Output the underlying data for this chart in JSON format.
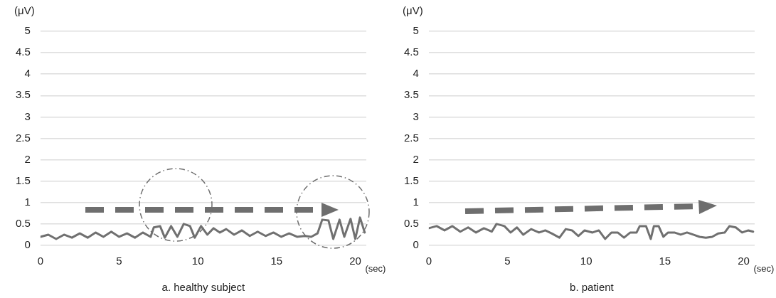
{
  "chart_data": [
    {
      "type": "line",
      "title": "a. healthy subject",
      "ylabel": "(μV)",
      "xlabel": "(sec)",
      "xlim": [
        0,
        20.7
      ],
      "xticks": [
        0,
        5,
        10,
        15,
        20
      ],
      "ylim": [
        0,
        5
      ],
      "yticks": [
        0,
        0.5,
        1,
        1.5,
        2,
        2.5,
        3,
        3.5,
        4,
        4.5,
        5
      ],
      "grid": "y",
      "legend": false,
      "marker": "none",
      "series": [
        {
          "color": "#707070",
          "x": [
            0,
            0.5,
            1,
            1.5,
            2,
            2.5,
            3,
            3.5,
            4,
            4.5,
            5,
            5.5,
            6,
            6.5,
            7,
            7.2,
            7.6,
            7.9,
            8.3,
            8.7,
            9.1,
            9.5,
            9.8,
            10.2,
            10.6,
            11,
            11.4,
            11.8,
            12.3,
            12.8,
            13.3,
            13.8,
            14.3,
            14.8,
            15.3,
            15.8,
            16.3,
            16.8,
            17.2,
            17.6,
            17.9,
            18.3,
            18.6,
            19,
            19.3,
            19.7,
            20,
            20.3,
            20.6
          ],
          "values": [
            0.2,
            0.25,
            0.15,
            0.25,
            0.18,
            0.28,
            0.18,
            0.3,
            0.2,
            0.32,
            0.2,
            0.28,
            0.18,
            0.3,
            0.2,
            0.42,
            0.45,
            0.18,
            0.45,
            0.2,
            0.5,
            0.45,
            0.18,
            0.45,
            0.25,
            0.4,
            0.3,
            0.38,
            0.25,
            0.35,
            0.22,
            0.32,
            0.22,
            0.3,
            0.2,
            0.28,
            0.2,
            0.22,
            0.2,
            0.28,
            0.6,
            0.58,
            0.15,
            0.6,
            0.2,
            0.62,
            0.15,
            0.65,
            0.3
          ]
        }
      ]
    },
    {
      "type": "line",
      "title": "b. patient",
      "ylabel": "(μV)",
      "xlabel": "(sec)",
      "xlim": [
        0,
        20.7
      ],
      "xticks": [
        0,
        5,
        10,
        15,
        20
      ],
      "ylim": [
        0,
        5
      ],
      "yticks": [
        0,
        0.5,
        1,
        1.5,
        2,
        2.5,
        3,
        3.5,
        4,
        4.5,
        5
      ],
      "grid": "y",
      "legend": false,
      "marker": "none",
      "series": [
        {
          "color": "#707070",
          "x": [
            0,
            0.5,
            1,
            1.5,
            2,
            2.5,
            3,
            3.5,
            4,
            4.3,
            4.8,
            5.2,
            5.6,
            6,
            6.5,
            7,
            7.4,
            7.8,
            8.3,
            8.7,
            9.1,
            9.5,
            9.9,
            10.4,
            10.8,
            11.2,
            11.6,
            12,
            12.4,
            12.8,
            13.2,
            13.4,
            13.8,
            14.1,
            14.3,
            14.6,
            14.9,
            15.2,
            15.6,
            16,
            16.4,
            16.8,
            17.2,
            17.6,
            18,
            18.4,
            18.8,
            19.1,
            19.5,
            19.9,
            20.3,
            20.6
          ],
          "values": [
            0.4,
            0.45,
            0.35,
            0.45,
            0.32,
            0.42,
            0.3,
            0.4,
            0.32,
            0.5,
            0.45,
            0.3,
            0.42,
            0.25,
            0.38,
            0.3,
            0.35,
            0.28,
            0.18,
            0.38,
            0.35,
            0.22,
            0.35,
            0.3,
            0.35,
            0.15,
            0.3,
            0.3,
            0.18,
            0.3,
            0.3,
            0.45,
            0.45,
            0.15,
            0.45,
            0.45,
            0.2,
            0.3,
            0.3,
            0.25,
            0.3,
            0.25,
            0.2,
            0.18,
            0.2,
            0.28,
            0.3,
            0.45,
            0.42,
            0.3,
            0.35,
            0.32
          ]
        }
      ]
    }
  ]
}
